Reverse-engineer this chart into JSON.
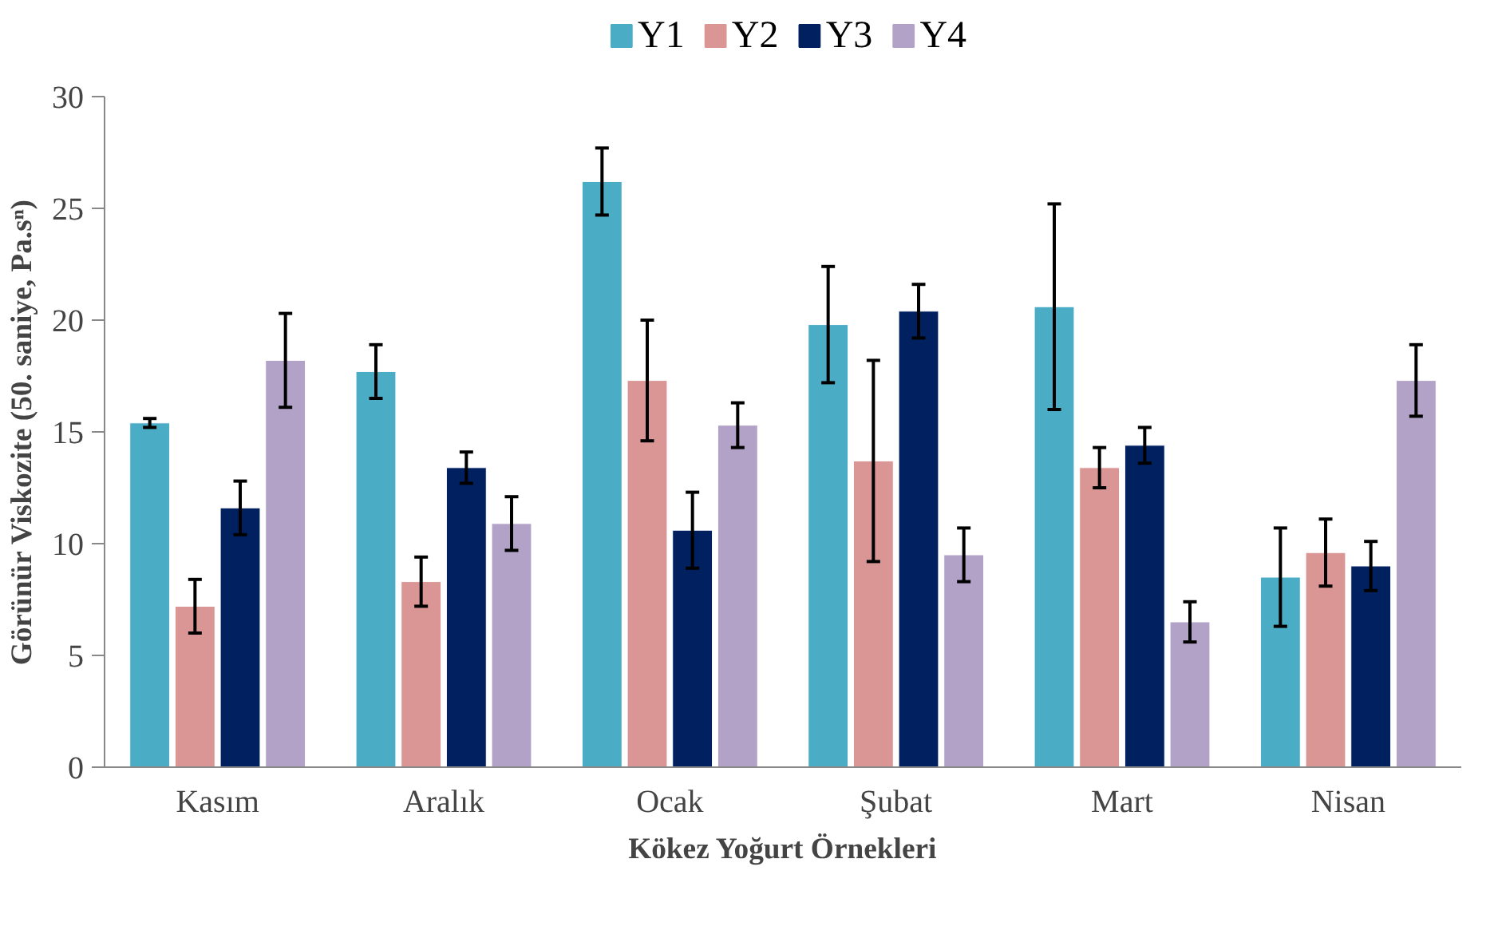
{
  "chart_data": {
    "type": "bar",
    "xlabel": "Kökez Yoğurt Örnekleri",
    "ylabel": "Görünür Viskozite (50. saniye, Pa.sⁿ)",
    "categories": [
      "Kasım",
      "Aralık",
      "Ocak",
      "Şubat",
      "Mart",
      "Nisan"
    ],
    "series": [
      {
        "name": "Y1",
        "color": "#4bacc6",
        "values": [
          15.4,
          17.7,
          26.2,
          19.8,
          20.6,
          8.5
        ],
        "errors": [
          0.2,
          1.2,
          1.5,
          2.6,
          4.6,
          2.2
        ]
      },
      {
        "name": "Y2",
        "color": "#d99694",
        "values": [
          7.2,
          8.3,
          17.3,
          13.7,
          13.4,
          9.6
        ],
        "errors": [
          1.2,
          1.1,
          2.7,
          4.5,
          0.9,
          1.5
        ]
      },
      {
        "name": "Y3",
        "color": "#002060",
        "values": [
          11.6,
          13.4,
          10.6,
          20.4,
          14.4,
          9.0
        ],
        "errors": [
          1.2,
          0.7,
          1.7,
          1.2,
          0.8,
          1.1
        ]
      },
      {
        "name": "Y4",
        "color": "#b3a2c7",
        "values": [
          18.2,
          10.9,
          15.3,
          9.5,
          6.5,
          17.3
        ],
        "errors": [
          2.1,
          1.2,
          1.0,
          1.2,
          0.9,
          1.6
        ]
      }
    ],
    "ylim": [
      0,
      30
    ],
    "yticks": [
      0,
      5,
      10,
      15,
      20,
      25,
      30
    ],
    "grid": false,
    "legend": "top"
  }
}
